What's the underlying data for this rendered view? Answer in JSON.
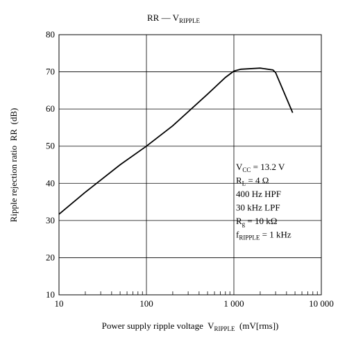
{
  "chart_data": {
    "type": "line",
    "title": [
      "RR — V",
      "RIPPLE"
    ],
    "xlabel": [
      "Power supply ripple voltage  V",
      "RIPPLE",
      "  (mV[rms])"
    ],
    "ylabel": "Ripple rejection ratio  RR  (dB)",
    "x": [
      10,
      20,
      50,
      100,
      200,
      500,
      800,
      1000,
      1200,
      2000,
      2800,
      3000,
      4700
    ],
    "series": [
      {
        "color": "#000000",
        "values": [
          31.7,
          37.6,
          45,
          50,
          55.5,
          64,
          68.5,
          70.2,
          70.7,
          71,
          70.5,
          69.8,
          59
        ]
      }
    ],
    "xscale": "log",
    "xlim": [
      10,
      10000
    ],
    "xticks": [
      10,
      100,
      {
        "value": 1000,
        "label": "1 000"
      },
      {
        "value": 10000,
        "label": "10 000"
      }
    ],
    "xminorticks": [
      20,
      30,
      40,
      50,
      60,
      70,
      80,
      90,
      200,
      300,
      400,
      500,
      600,
      700,
      800,
      900,
      2000,
      3000,
      4000,
      5000,
      6000,
      7000,
      8000,
      9000
    ],
    "ylim": [
      10,
      80
    ],
    "yticks": [
      10,
      20,
      30,
      40,
      50,
      60,
      70,
      80
    ],
    "grid": true,
    "annotations": [
      [
        "V",
        "CC",
        " = 13.2 V"
      ],
      [
        "R",
        "L",
        " = 4 Ω"
      ],
      [
        "400 Hz HPF"
      ],
      [
        "30 kHz LPF"
      ],
      [
        "R",
        "g",
        " = 10 kΩ"
      ],
      [
        "f",
        "RIPPLE",
        " = 1 kHz"
      ]
    ]
  }
}
